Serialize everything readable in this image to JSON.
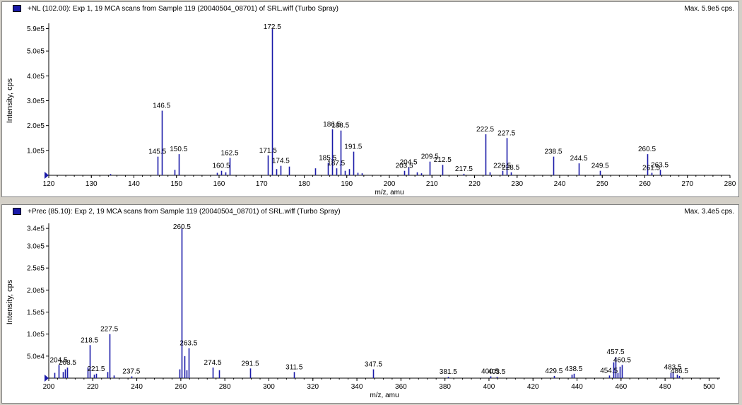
{
  "panels": [
    {
      "title": "+NL (102.00): Exp 1, 19 MCA scans from Sample 119 (20040504_08701) of SRL.wiff (Turbo Spray)",
      "max_label": "Max. 5.9e5 cps."
    },
    {
      "title": "+Prec (85.10): Exp 2, 19 MCA scans from Sample 119 (20040504_08701) of SRL.wiff (Turbo Spray)",
      "max_label": "Max. 3.4e5 cps."
    }
  ],
  "colors": {
    "series": "#1a1aa8",
    "legend": "#1a1aa8"
  },
  "chart_data": [
    {
      "type": "bar",
      "xlabel": "m/z, amu",
      "ylabel": "Intensity, cps",
      "xlim": [
        120,
        280
      ],
      "ylim": [
        0,
        600000
      ],
      "xticks": [
        120,
        130,
        140,
        150,
        160,
        170,
        180,
        190,
        200,
        210,
        220,
        230,
        240,
        250,
        260,
        270,
        280
      ],
      "yticks": [
        100000,
        200000,
        300000,
        400000,
        500000,
        590000
      ],
      "ytick_labels": [
        "1.0e5",
        "2.0e5",
        "3.0e5",
        "4.0e5",
        "5.0e5",
        "5.9e5"
      ],
      "peaks": [
        {
          "x": 134.5,
          "y": 5000
        },
        {
          "x": 145.5,
          "y": 75000
        },
        {
          "x": 146.5,
          "y": 260000
        },
        {
          "x": 149.5,
          "y": 22000
        },
        {
          "x": 150.5,
          "y": 85000
        },
        {
          "x": 159.5,
          "y": 10000
        },
        {
          "x": 160.5,
          "y": 18000
        },
        {
          "x": 161.5,
          "y": 12000
        },
        {
          "x": 162.5,
          "y": 70000
        },
        {
          "x": 171.5,
          "y": 80000
        },
        {
          "x": 172.5,
          "y": 590000
        },
        {
          "x": 173.5,
          "y": 25000
        },
        {
          "x": 174.5,
          "y": 38000
        },
        {
          "x": 176.5,
          "y": 35000
        },
        {
          "x": 182.5,
          "y": 28000
        },
        {
          "x": 185.5,
          "y": 50000
        },
        {
          "x": 186.5,
          "y": 185000
        },
        {
          "x": 187.5,
          "y": 28000
        },
        {
          "x": 188.5,
          "y": 180000
        },
        {
          "x": 189.5,
          "y": 18000
        },
        {
          "x": 190.5,
          "y": 25000
        },
        {
          "x": 191.5,
          "y": 95000
        },
        {
          "x": 192.5,
          "y": 10000
        },
        {
          "x": 193.5,
          "y": 8000
        },
        {
          "x": 203.5,
          "y": 18000
        },
        {
          "x": 204.5,
          "y": 32000
        },
        {
          "x": 206.5,
          "y": 12000
        },
        {
          "x": 207.5,
          "y": 8000
        },
        {
          "x": 209.5,
          "y": 55000
        },
        {
          "x": 212.5,
          "y": 42000
        },
        {
          "x": 217.5,
          "y": 6000
        },
        {
          "x": 222.5,
          "y": 165000
        },
        {
          "x": 223.5,
          "y": 12000
        },
        {
          "x": 226.5,
          "y": 18000
        },
        {
          "x": 227.5,
          "y": 150000
        },
        {
          "x": 228.5,
          "y": 12000
        },
        {
          "x": 238.5,
          "y": 75000
        },
        {
          "x": 244.5,
          "y": 48000
        },
        {
          "x": 249.5,
          "y": 18000
        },
        {
          "x": 260.5,
          "y": 85000
        },
        {
          "x": 261.5,
          "y": 10000
        },
        {
          "x": 263.5,
          "y": 22000
        }
      ],
      "peak_labels": [
        {
          "text": "145.5",
          "x": 145.5,
          "y": 75000
        },
        {
          "text": "146.5",
          "x": 146.5,
          "y": 260000
        },
        {
          "text": "150.5",
          "x": 150.5,
          "y": 85000
        },
        {
          "text": "160.5",
          "x": 160.5,
          "y": 18000
        },
        {
          "text": "162.5",
          "x": 162.5,
          "y": 70000
        },
        {
          "text": "171.5",
          "x": 171.5,
          "y": 80000
        },
        {
          "text": "172.5",
          "x": 172.5,
          "y": 590000
        },
        {
          "text": "174.5",
          "x": 174.5,
          "y": 38000
        },
        {
          "text": "185.5",
          "x": 185.5,
          "y": 50000
        },
        {
          "text": "186.5",
          "x": 186.5,
          "y": 185000
        },
        {
          "text": "187.5",
          "x": 187.5,
          "y": 28000
        },
        {
          "text": "188.5",
          "x": 188.5,
          "y": 180000
        },
        {
          "text": "191.5",
          "x": 191.5,
          "y": 95000
        },
        {
          "text": "203.5",
          "x": 203.5,
          "y": 18000
        },
        {
          "text": "204.5",
          "x": 204.5,
          "y": 32000
        },
        {
          "text": "209.5",
          "x": 209.5,
          "y": 55000
        },
        {
          "text": "212.5",
          "x": 212.5,
          "y": 42000
        },
        {
          "text": "217.5",
          "x": 217.5,
          "y": 6000
        },
        {
          "text": "222.5",
          "x": 222.5,
          "y": 165000
        },
        {
          "text": "226.5",
          "x": 226.5,
          "y": 18000
        },
        {
          "text": "227.5",
          "x": 227.5,
          "y": 150000
        },
        {
          "text": "228.5",
          "x": 228.5,
          "y": 12000
        },
        {
          "text": "238.5",
          "x": 238.5,
          "y": 75000
        },
        {
          "text": "244.5",
          "x": 244.5,
          "y": 48000
        },
        {
          "text": "249.5",
          "x": 249.5,
          "y": 18000
        },
        {
          "text": "260.5",
          "x": 260.5,
          "y": 85000
        },
        {
          "text": "261.5",
          "x": 261.5,
          "y": 10000
        },
        {
          "text": "263.5",
          "x": 263.5,
          "y": 22000
        }
      ]
    },
    {
      "type": "bar",
      "xlabel": "m/z, amu",
      "ylabel": "Intensity, cps",
      "xlim": [
        200,
        505
      ],
      "ylim": [
        0,
        345000
      ],
      "xticks": [
        200,
        220,
        240,
        260,
        280,
        300,
        320,
        340,
        360,
        380,
        400,
        420,
        440,
        460,
        480,
        500
      ],
      "yticks": [
        50000,
        100000,
        150000,
        200000,
        250000,
        300000,
        340000
      ],
      "ytick_labels": [
        "5.0e4",
        "1.0e5",
        "1.5e5",
        "2.0e5",
        "2.5e5",
        "3.0e5",
        "3.4e5"
      ],
      "peaks": [
        {
          "x": 202.5,
          "y": 12000
        },
        {
          "x": 204.5,
          "y": 30000
        },
        {
          "x": 206.5,
          "y": 14000
        },
        {
          "x": 207.5,
          "y": 20000
        },
        {
          "x": 208.5,
          "y": 24000
        },
        {
          "x": 217.5,
          "y": 24000
        },
        {
          "x": 218.5,
          "y": 75000
        },
        {
          "x": 220.5,
          "y": 8000
        },
        {
          "x": 221.5,
          "y": 10000
        },
        {
          "x": 226.5,
          "y": 14000
        },
        {
          "x": 227.5,
          "y": 100000
        },
        {
          "x": 229.5,
          "y": 6000
        },
        {
          "x": 237.5,
          "y": 4000
        },
        {
          "x": 259.5,
          "y": 20000
        },
        {
          "x": 260.5,
          "y": 340000
        },
        {
          "x": 261.5,
          "y": 50000
        },
        {
          "x": 262.5,
          "y": 18000
        },
        {
          "x": 263.5,
          "y": 68000
        },
        {
          "x": 274.5,
          "y": 24000
        },
        {
          "x": 277.5,
          "y": 18000
        },
        {
          "x": 291.5,
          "y": 22000
        },
        {
          "x": 311.5,
          "y": 14000
        },
        {
          "x": 347.5,
          "y": 20000
        },
        {
          "x": 381.5,
          "y": 3000
        },
        {
          "x": 400.5,
          "y": 4000
        },
        {
          "x": 403.5,
          "y": 3000
        },
        {
          "x": 429.5,
          "y": 5000
        },
        {
          "x": 437.5,
          "y": 8000
        },
        {
          "x": 438.5,
          "y": 10000
        },
        {
          "x": 454.5,
          "y": 6000
        },
        {
          "x": 456.5,
          "y": 36000
        },
        {
          "x": 457.5,
          "y": 48000
        },
        {
          "x": 458.5,
          "y": 12000
        },
        {
          "x": 459.5,
          "y": 26000
        },
        {
          "x": 460.5,
          "y": 30000
        },
        {
          "x": 482.5,
          "y": 12000
        },
        {
          "x": 483.5,
          "y": 14000
        },
        {
          "x": 485.5,
          "y": 8000
        },
        {
          "x": 486.5,
          "y": 5000
        }
      ],
      "peak_labels": [
        {
          "text": "204.5",
          "x": 204.5,
          "y": 30000
        },
        {
          "text": "208.5",
          "x": 208.5,
          "y": 24000
        },
        {
          "text": "218.5",
          "x": 218.5,
          "y": 75000
        },
        {
          "text": "221.5",
          "x": 221.5,
          "y": 10000
        },
        {
          "text": "227.5",
          "x": 227.5,
          "y": 100000
        },
        {
          "text": "237.5",
          "x": 237.5,
          "y": 4000
        },
        {
          "text": "260.5",
          "x": 260.5,
          "y": 340000
        },
        {
          "text": "263.5",
          "x": 263.5,
          "y": 68000
        },
        {
          "text": "274.5",
          "x": 274.5,
          "y": 24000
        },
        {
          "text": "291.5",
          "x": 291.5,
          "y": 22000
        },
        {
          "text": "311.5",
          "x": 311.5,
          "y": 14000
        },
        {
          "text": "347.5",
          "x": 347.5,
          "y": 20000
        },
        {
          "text": "381.5",
          "x": 381.5,
          "y": 3000
        },
        {
          "text": "400.5",
          "x": 400.5,
          "y": 4000
        },
        {
          "text": "403.5",
          "x": 403.5,
          "y": 3000
        },
        {
          "text": "429.5",
          "x": 429.5,
          "y": 5000
        },
        {
          "text": "438.5",
          "x": 438.5,
          "y": 10000
        },
        {
          "text": "454.5",
          "x": 454.5,
          "y": 6000
        },
        {
          "text": "457.5",
          "x": 457.5,
          "y": 48000
        },
        {
          "text": "460.5",
          "x": 460.5,
          "y": 30000
        },
        {
          "text": "483.5",
          "x": 483.5,
          "y": 14000
        },
        {
          "text": "486.5",
          "x": 486.5,
          "y": 5000
        }
      ]
    }
  ]
}
